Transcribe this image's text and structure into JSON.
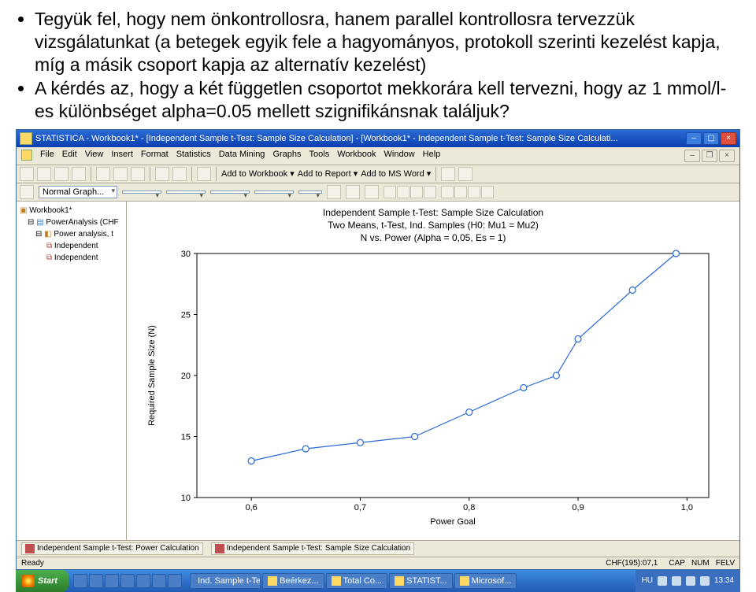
{
  "bullets": [
    "Tegyük fel, hogy nem önkontrollosra, hanem parallel kontrollosra tervezzük vizsgálatunkat (a betegek egyik fele a hagyományos, protokoll szerinti kezelést kapja, míg a másik csoport kapja az alternatív kezelést)",
    "A kérdés az, hogy a két független csoportot mekkorára kell tervezni, hogy az 1 mmol/l-es különbséget alpha=0.05 mellett szignifikánsnak találjuk?"
  ],
  "titlebar": "STATISTICA - Workbook1* - [Independent Sample t-Test: Sample Size Calculation] - [Workbook1* - Independent Sample t-Test: Sample Size Calculati...",
  "menus": [
    "File",
    "Edit",
    "View",
    "Insert",
    "Format",
    "Statistics",
    "Data Mining",
    "Graphs",
    "Tools",
    "Workbook",
    "Window",
    "Help"
  ],
  "toolbar_text": {
    "addwb": "Add to Workbook ▾",
    "addrep": "Add to Report ▾",
    "addword": "Add to MS Word ▾"
  },
  "font_dd": "Normal Graph...",
  "tree": {
    "root": "Workbook1*",
    "n1": "PowerAnalysis (CHF",
    "n2": "Power analysis, t",
    "n3": "Independent",
    "n4": "Independent"
  },
  "chart": {
    "title1": "Independent Sample t-Test: Sample Size Calculation",
    "title2": "Two Means, t-Test, Ind. Samples (H0:  Mu1 = Mu2)",
    "title3": "N vs. Power (Alpha = 0,05, Es = 1)",
    "ylabel": "Required Sample Size (N)",
    "xlabel": "Power Goal",
    "xticks": [
      0.6,
      0.7,
      0.8,
      0.9,
      1.0
    ],
    "yticks": [
      10,
      15,
      20,
      25,
      30
    ],
    "xlim": [
      0.55,
      1.02
    ],
    "ylim": [
      10,
      30
    ],
    "points": [
      [
        0.6,
        13
      ],
      [
        0.65,
        14
      ],
      [
        0.7,
        14.5
      ],
      [
        0.75,
        15
      ],
      [
        0.8,
        17
      ],
      [
        0.85,
        19
      ],
      [
        0.88,
        20
      ],
      [
        0.9,
        23
      ],
      [
        0.95,
        27
      ],
      [
        0.99,
        30
      ]
    ],
    "line_color": "#2a6ad3",
    "marker_stroke": "#2a6ad3",
    "marker_fill": "#ffffff",
    "bg": "#ffffff",
    "axis_color": "#000000"
  },
  "tabs": {
    "t1": "Independent Sample t-Test: Power Calculation",
    "t2": "Independent Sample t-Test: Sample Size Calculation"
  },
  "status": {
    "ready": "Ready",
    "chf": "CHF(195):07,1",
    "cap": "CAP",
    "num": "NUM",
    "felv": "FELV"
  },
  "taskbar": {
    "start": "Start",
    "tasks": [
      "Ind. Sample t-Te...",
      "Beérkez...",
      "Total Co...",
      "STATIST...",
      "Microsof..."
    ],
    "lang": "HU",
    "time": "13:34"
  }
}
